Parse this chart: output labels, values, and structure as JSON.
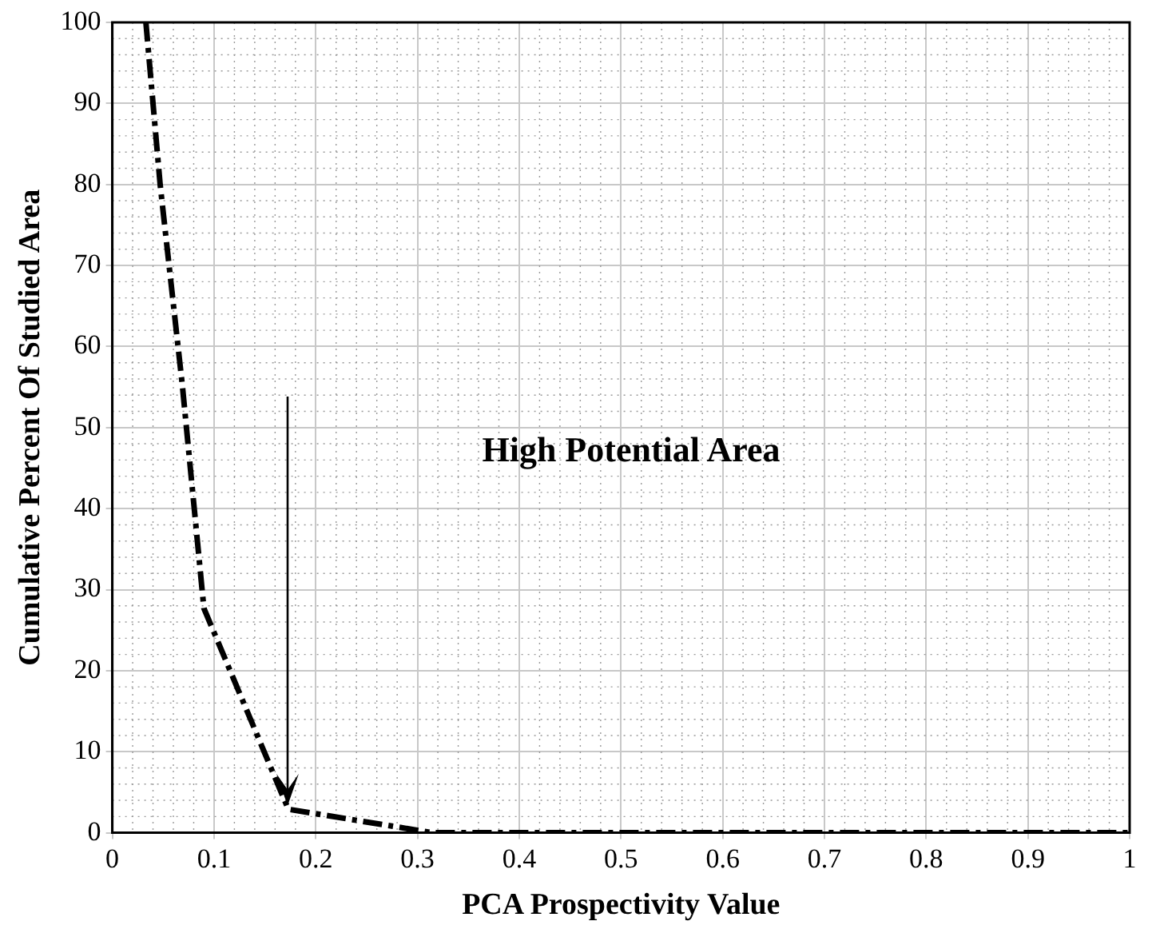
{
  "chart_data": {
    "type": "line",
    "xlabel": "PCA Prospectivity Value",
    "ylabel": "Cumulative Percent Of Studied Area",
    "x": [
      0.033,
      0.047,
      0.069,
      0.09,
      0.173,
      0.315,
      1
    ],
    "series": [
      {
        "color": "#000000",
        "values": [
          100,
          80,
          55,
          27.7,
          2.9,
          0,
          0
        ]
      }
    ],
    "xlim": [
      0,
      1
    ],
    "xticks": [
      0,
      0.1,
      0.2,
      0.3,
      0.4,
      0.5,
      0.6,
      0.7,
      0.8,
      0.9,
      1
    ],
    "ylim": [
      0,
      100
    ],
    "yticks": [
      0,
      10,
      20,
      30,
      40,
      50,
      60,
      70,
      80,
      90,
      100
    ],
    "grid": true,
    "marker": "none",
    "line_style": "dashed",
    "annotations": [
      "High Potential Area"
    ]
  }
}
